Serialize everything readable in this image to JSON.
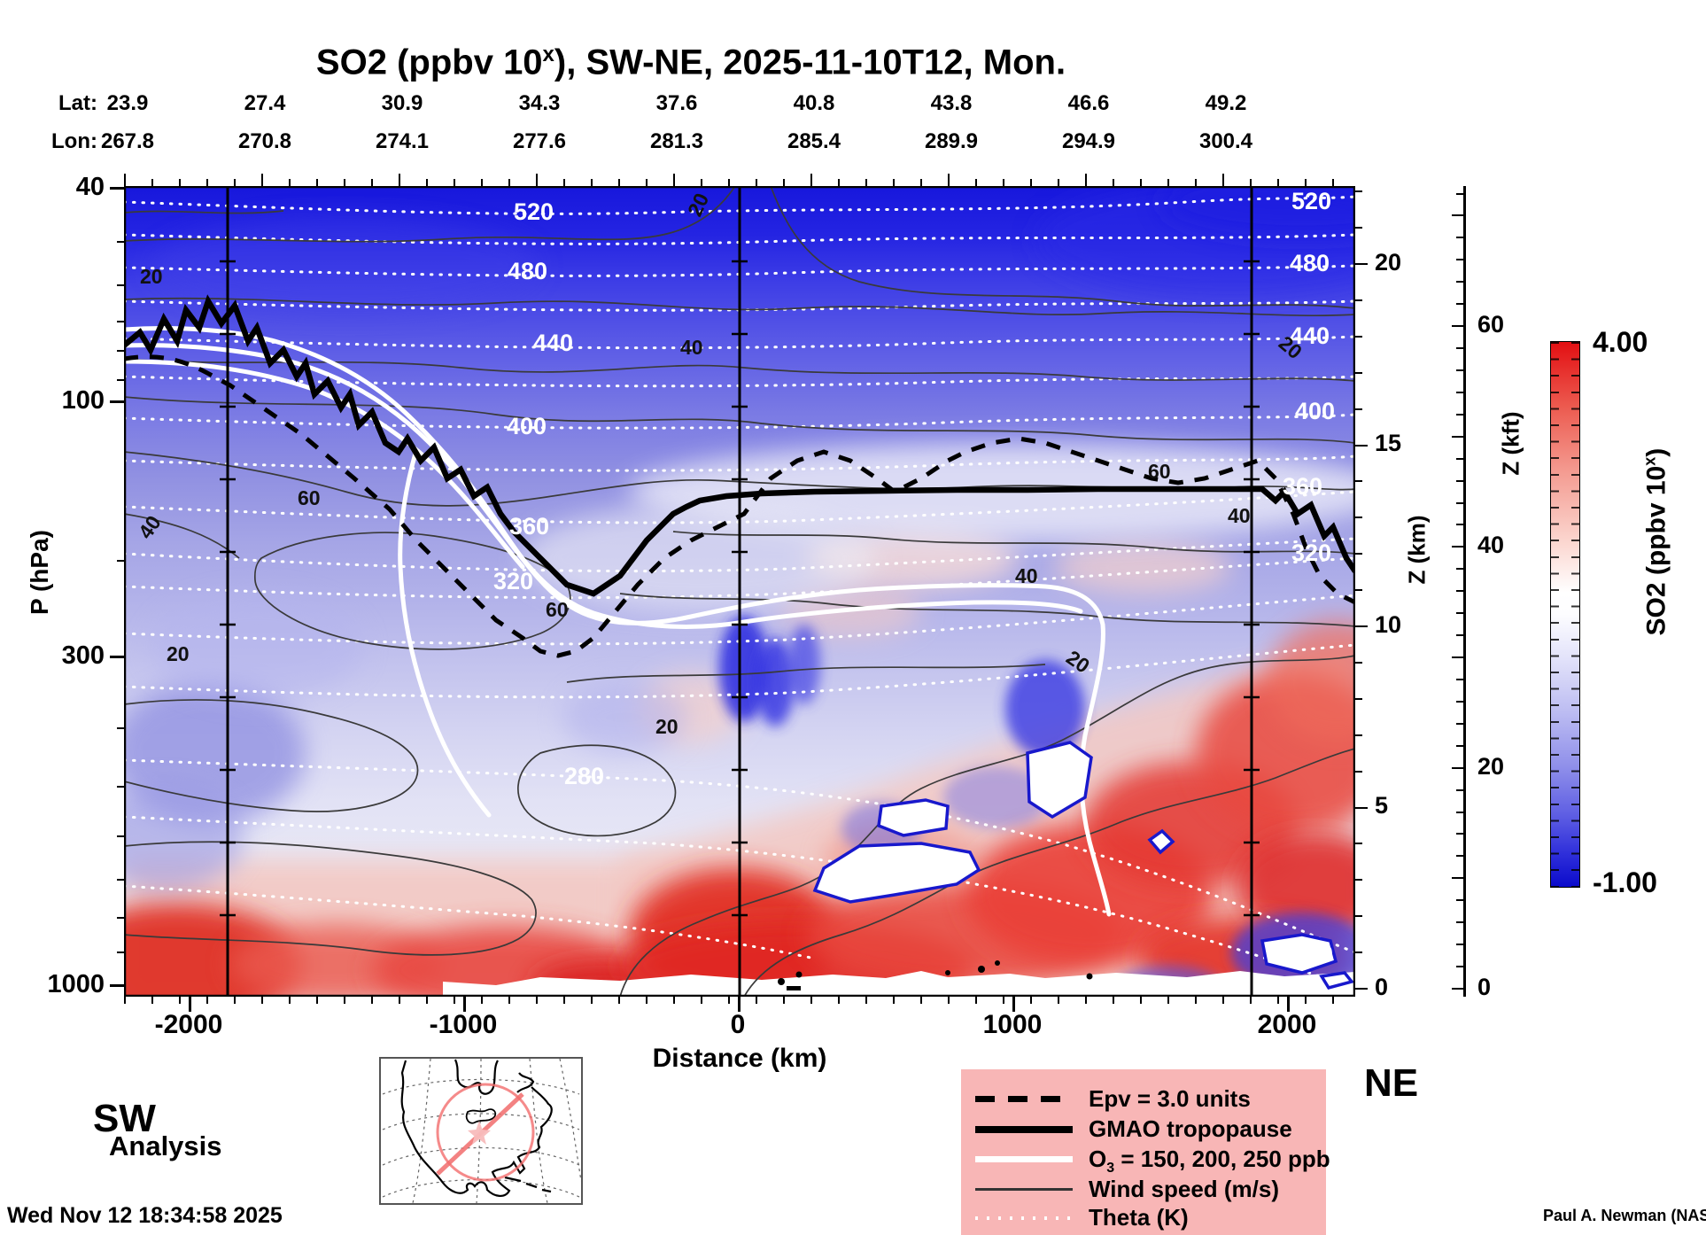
{
  "title": {
    "prefix": "SO2 (ppbv 10",
    "sup": "x",
    "suffix": "), SW-NE, 2025-11-10T12, Mon."
  },
  "top_axis": {
    "lat_caption": "Lat:",
    "lon_caption": "Lon:",
    "lat": [
      "23.9",
      "27.4",
      "30.9",
      "34.3",
      "37.6",
      "40.8",
      "43.8",
      "46.6",
      "49.2"
    ],
    "lon": [
      "267.8",
      "270.8",
      "274.1",
      "277.6",
      "281.3",
      "285.4",
      "289.9",
      "294.9",
      "300.4"
    ]
  },
  "left_axis": {
    "label": "P (hPa)",
    "ticks": [
      "40",
      "100",
      "300",
      "1000"
    ]
  },
  "right_axis_km": {
    "label": "Z (km)",
    "ticks": [
      "20",
      "15",
      "10",
      "5",
      "0"
    ]
  },
  "right_axis_kft": {
    "label": "Z (kft)",
    "ticks": [
      "60",
      "40",
      "20",
      "0"
    ]
  },
  "bottom_axis": {
    "label": "Distance (km)",
    "ticks": [
      "-2000",
      "-1000",
      "0",
      "1000",
      "2000"
    ]
  },
  "endpoints": {
    "sw": "SW",
    "ne": "NE"
  },
  "colorbar": {
    "max": "4.00",
    "min": "-1.00",
    "label_prefix": "SO2 (ppbv 10",
    "label_sup": "x",
    "label_suffix": ")",
    "top_color": "#e30f12",
    "mid_color": "#ffffff",
    "bottom_color": "#0b0bcb"
  },
  "legend": {
    "items": [
      {
        "name": "epv",
        "label": "Epv = 3.0 units"
      },
      {
        "name": "tropopause",
        "label": "GMAO tropopause"
      },
      {
        "name": "o3",
        "label_prefix": "O",
        "label_sub": "3",
        "label_suffix": " = 150, 200, 250 ppb"
      },
      {
        "name": "wind",
        "label": "Wind speed (m/s)"
      },
      {
        "name": "theta",
        "label": "Theta (K)"
      }
    ]
  },
  "annotations": {
    "analysis": "Analysis",
    "timestamp": "Wed Nov 12 18:34:58 2025",
    "credit": "Paul A. Newman (NASA"
  },
  "contour_labels": {
    "theta": [
      "520",
      "480",
      "440",
      "400",
      "360",
      "320",
      "280"
    ],
    "wind": [
      "20",
      "40",
      "60"
    ]
  },
  "chart_data": {
    "type": "heatmap",
    "subtype": "filled-contour vertical cross-section",
    "title": "SO2 (ppbv 10^x), SW-NE, 2025-11-10T12, Mon.",
    "variable": "SO2",
    "units": "ppbv 10^x",
    "time": "2025-11-10T12",
    "day": "Mon.",
    "transect": "SW-NE",
    "colorbar_range": [
      -1.0,
      4.0
    ],
    "x_axis": {
      "label": "Distance (km)",
      "range": [
        -2250,
        2250
      ],
      "ticks": [
        -2000,
        -1000,
        0,
        1000,
        2000
      ]
    },
    "y_axis_pressure": {
      "label": "P (hPa)",
      "ticks": [
        40,
        100,
        300,
        1000
      ],
      "scale": "log-height",
      "range": [
        40,
        1000
      ]
    },
    "y_axis_altitude_km": {
      "label": "Z (km)",
      "ticks": [
        20,
        15,
        10,
        5,
        0
      ]
    },
    "y_axis_altitude_kft": {
      "label": "Z (kft)",
      "ticks": [
        60,
        40,
        20,
        0
      ]
    },
    "top_axis_lat": [
      23.9,
      27.4,
      30.9,
      34.3,
      37.6,
      40.8,
      43.8,
      46.6,
      49.2
    ],
    "top_axis_lon": [
      267.8,
      270.8,
      274.1,
      277.6,
      281.3,
      285.4,
      289.9,
      294.9,
      300.4
    ],
    "vertical_marker_lines_km": [
      -1860,
      0,
      1860
    ],
    "overlays": {
      "theta_K_labeled_contours": [
        280,
        320,
        360,
        400,
        440,
        480,
        520
      ],
      "wind_speed_ms_labeled_contours": [
        20,
        40,
        60
      ],
      "o3_contours_ppb": [
        150,
        200,
        250
      ],
      "epv_contour": "3.0 units",
      "tropopause": "GMAO tropopause"
    },
    "tropopause_polyline_km_vs_zkm": [
      [
        -2235,
        17.7
      ],
      [
        -1780,
        17.8
      ],
      [
        -1235,
        14.8
      ],
      [
        -850,
        12.6
      ],
      [
        -525,
        10.9
      ],
      [
        -140,
        13.4
      ],
      [
        670,
        13.7
      ],
      [
        1890,
        13.8
      ],
      [
        2250,
        11.5
      ]
    ],
    "field_summary": "Blue (low SO2 exponent) aloft in stratosphere, near-white around tropopause, pink/red (high SO2) in lower troposphere below ~5 km with strongest red near surface; scattered blue pockets and white out-of-range patches outlined in blue near 1000-2000 km at 1-4 km altitude."
  }
}
